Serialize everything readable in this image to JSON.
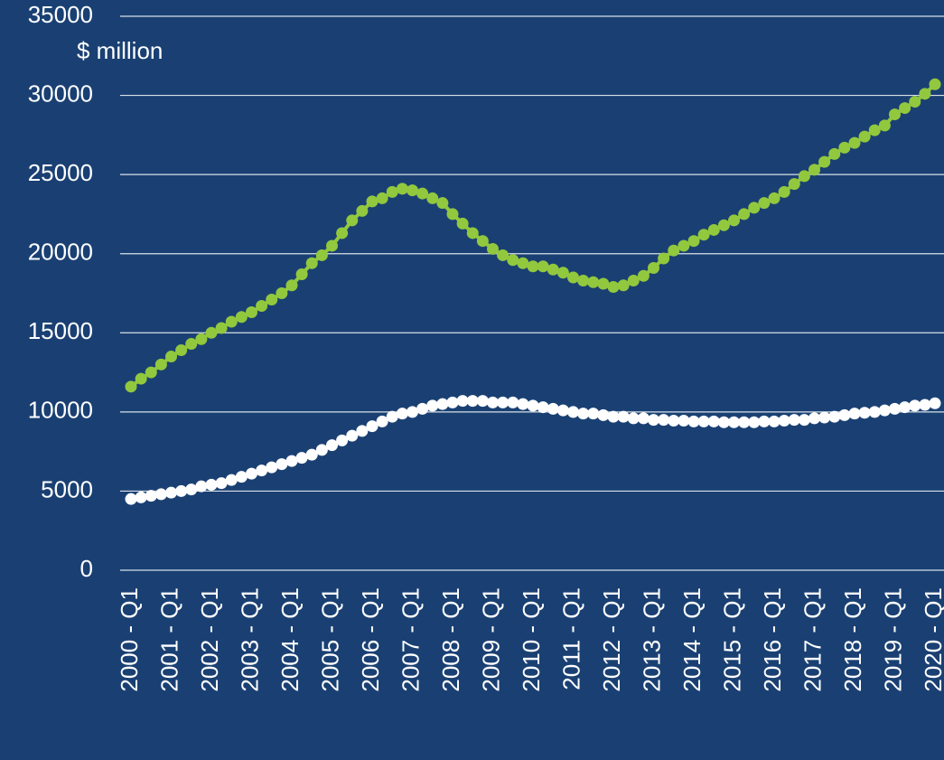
{
  "chart_data": {
    "type": "line",
    "annotations": [
      "$ million"
    ],
    "categories": [
      "2000 - Q1",
      null,
      null,
      null,
      "2001 - Q1",
      null,
      null,
      null,
      "2002 - Q1",
      null,
      null,
      null,
      "2003 - Q1",
      null,
      null,
      null,
      "2004 - Q1",
      null,
      null,
      null,
      "2005 - Q1",
      null,
      null,
      null,
      "2006 - Q1",
      null,
      null,
      null,
      "2007 - Q1",
      null,
      null,
      null,
      "2008 - Q1",
      null,
      null,
      null,
      "2009 - Q1",
      null,
      null,
      null,
      "2010 - Q1",
      null,
      null,
      null,
      "2011 - Q1",
      null,
      null,
      null,
      "2012 - Q1",
      null,
      null,
      null,
      "2013 - Q1",
      null,
      null,
      null,
      "2014 - Q1",
      null,
      null,
      null,
      "2015 - Q1",
      null,
      null,
      null,
      "2016 - Q1",
      null,
      null,
      null,
      "2017 - Q1",
      null,
      null,
      null,
      "2018 - Q1",
      null,
      null,
      null,
      "2019 - Q1",
      null,
      null,
      null,
      "2020 - Q1"
    ],
    "series": [
      {
        "color": "#92c83e",
        "values": [
          11600,
          12100,
          12500,
          13000,
          13500,
          13900,
          14300,
          14600,
          15000,
          15300,
          15700,
          16000,
          16300,
          16700,
          17100,
          17500,
          18000,
          18700,
          19400,
          19900,
          20500,
          21300,
          22100,
          22700,
          23300,
          23500,
          23900,
          24100,
          24000,
          23800,
          23500,
          23200,
          22500,
          21900,
          21300,
          20800,
          20300,
          19900,
          19600,
          19400,
          19200,
          19200,
          19000,
          18800,
          18500,
          18300,
          18200,
          18100,
          17900,
          18000,
          18300,
          18600,
          19100,
          19700,
          20200,
          20500,
          20800,
          21200,
          21500,
          21800,
          22100,
          22500,
          22900,
          23200,
          23500,
          23900,
          24400,
          24900,
          25300,
          25800,
          26300,
          26700,
          27000,
          27400,
          27800,
          28100,
          28800,
          29200,
          29600,
          30100,
          30700
        ]
      },
      {
        "color": "#ffffff",
        "values": [
          4500,
          4600,
          4700,
          4800,
          4900,
          5000,
          5100,
          5300,
          5400,
          5500,
          5700,
          5900,
          6100,
          6300,
          6500,
          6700,
          6900,
          7100,
          7300,
          7600,
          7900,
          8200,
          8500,
          8800,
          9100,
          9400,
          9700,
          9900,
          10000,
          10200,
          10400,
          10500,
          10600,
          10700,
          10700,
          10700,
          10600,
          10600,
          10600,
          10500,
          10400,
          10300,
          10200,
          10100,
          10000,
          9900,
          9900,
          9800,
          9700,
          9700,
          9600,
          9600,
          9500,
          9500,
          9450,
          9450,
          9400,
          9400,
          9400,
          9350,
          9350,
          9350,
          9350,
          9400,
          9400,
          9450,
          9500,
          9500,
          9600,
          9650,
          9700,
          9800,
          9900,
          9950,
          10000,
          10100,
          10200,
          10300,
          10400,
          10450,
          10550
        ]
      }
    ],
    "ylim": [
      0,
      35000
    ],
    "yticks": [
      0,
      5000,
      10000,
      15000,
      20000,
      25000,
      30000,
      35000
    ],
    "grid": true
  }
}
